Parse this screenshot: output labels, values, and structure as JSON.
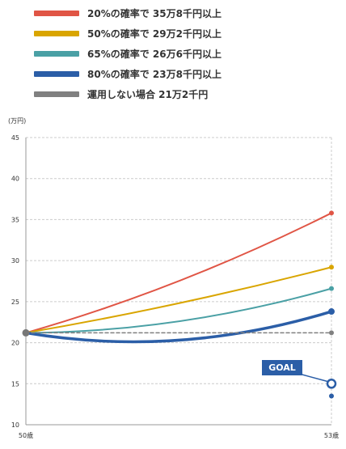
{
  "chart_data": {
    "type": "line",
    "ylabel": "(万円)",
    "ylim": [
      10,
      45
    ],
    "yticks": [
      10,
      15,
      20,
      25,
      30,
      35,
      40,
      45
    ],
    "x_labels": [
      "50歳",
      "53歳"
    ],
    "grid": true,
    "legend_position": "top-left",
    "series": [
      {
        "name": "20%の確率で 35万8千円以上",
        "color": "#e05545",
        "width": 2,
        "dashed": false,
        "start": 21.2,
        "mid": 27.5,
        "end": 35.8
      },
      {
        "name": "50%の確率で 29万2千円以上",
        "color": "#d9a500",
        "width": 2,
        "dashed": false,
        "start": 21.2,
        "mid": 24.8,
        "end": 29.2
      },
      {
        "name": "65%の確率で 26万6千円以上",
        "color": "#4aa0a5",
        "width": 2,
        "dashed": false,
        "start": 21.2,
        "mid": 22.6,
        "end": 26.6
      },
      {
        "name": "80%の確率で 23万8千円以上",
        "color": "#2b5ea7",
        "width": 3.5,
        "dashed": false,
        "start": 21.2,
        "mid": 20.3,
        "end": 23.8
      },
      {
        "name": "運用しない場合 21万2千円",
        "color": "#808080",
        "width": 1.5,
        "dashed": true,
        "start": 21.2,
        "mid": 21.2,
        "end": 21.2
      }
    ],
    "goal": {
      "label": "GOAL",
      "value": 15.0,
      "lower_value": 13.5,
      "color": "#2b5ea7"
    }
  }
}
